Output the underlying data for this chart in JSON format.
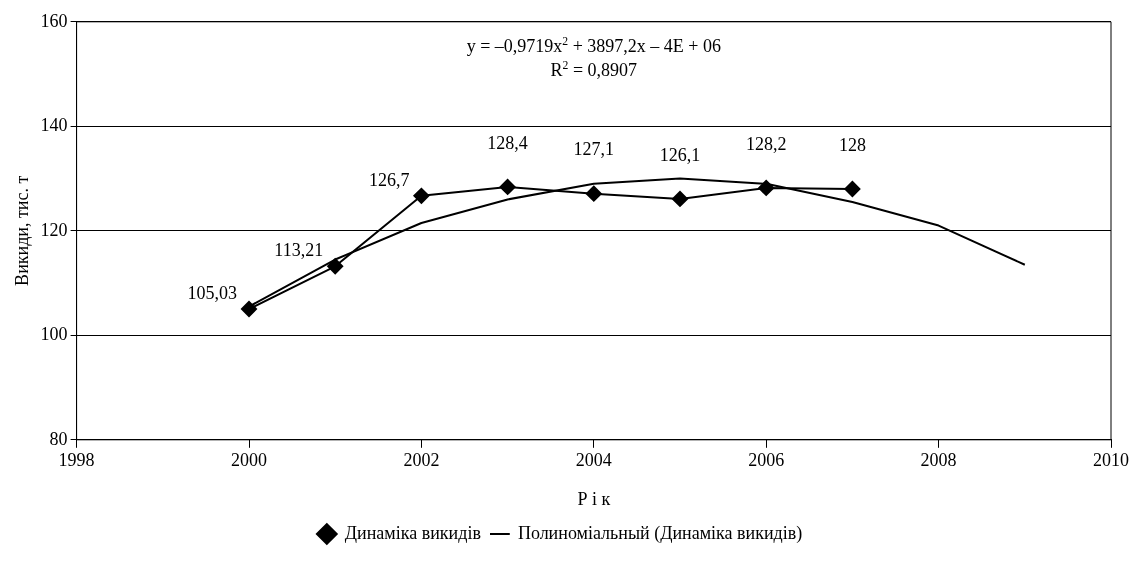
{
  "chart_data": {
    "type": "line",
    "xlabel": "Р і к",
    "ylabel": "Викиди, тис. т",
    "annotations": [
      "y = –0,9719x$^{2}$ + 3897,2x – 4E + 06",
      "R$^{2}$ = 0,8907"
    ],
    "series": [
      {
        "name": "Динаміка викидів",
        "color": "#000000",
        "marker": "diamond",
        "x": [
          2000,
          2001,
          2002,
          2003,
          2004,
          2005,
          2006,
          2007
        ],
        "values": [
          105.03,
          113.21,
          126.7,
          128.4,
          127.1,
          126.1,
          128.2,
          128
        ],
        "value_labels": [
          "105,03",
          "113,21",
          "126,7",
          "128,4",
          "127,1",
          "126,1",
          "128,2",
          "128"
        ]
      },
      {
        "name": "Полиноміальный (Динаміка викидів)",
        "color": "#000000",
        "marker": "none",
        "x": [
          2000,
          2001,
          2002,
          2003,
          2004,
          2005,
          2006,
          2007,
          2008,
          2009
        ],
        "values": [
          105.5,
          114.5,
          121.5,
          126,
          129,
          130,
          129,
          125.5,
          121,
          113.5
        ]
      }
    ],
    "xlim": [
      1998,
      2010
    ],
    "xticks": [
      1998,
      2000,
      2002,
      2004,
      2006,
      2008,
      2010
    ],
    "ylim": [
      80,
      160
    ],
    "yticks": [
      80,
      100,
      120,
      140,
      160
    ],
    "grid": "y",
    "legend": "bottom"
  }
}
